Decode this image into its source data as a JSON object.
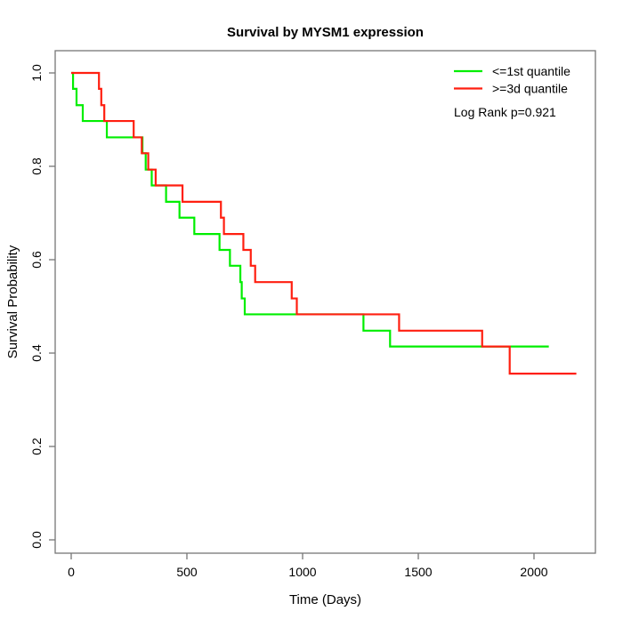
{
  "chart_data": {
    "type": "line",
    "subtype": "kaplan-meier-step",
    "title": "Survival by MYSM1 expression",
    "xlabel": "Time (Days)",
    "ylabel": "Survival Probability",
    "x_ticks": [
      0,
      500,
      1000,
      1500,
      2000
    ],
    "y_tick_labels": [
      "0.0",
      "0.2",
      "0.4",
      "0.6",
      "0.8",
      "1.0"
    ],
    "y_tick_values": [
      0.0,
      0.2,
      0.4,
      0.6,
      0.8,
      1.0
    ],
    "xlim": [
      0,
      2200
    ],
    "ylim": [
      0,
      1
    ],
    "grid": "off",
    "legend_position": "top-right",
    "annotation": "Log Rank p=0.921",
    "series": [
      {
        "name": "<=1st quantile",
        "color": "#00ee00",
        "start": [
          0,
          1.0
        ],
        "steps": [
          [
            8,
            0.966
          ],
          [
            23,
            0.931
          ],
          [
            50,
            0.897
          ],
          [
            154,
            0.862
          ],
          [
            308,
            0.828
          ],
          [
            322,
            0.793
          ],
          [
            348,
            0.759
          ],
          [
            410,
            0.724
          ],
          [
            468,
            0.69
          ],
          [
            532,
            0.655
          ],
          [
            641,
            0.621
          ],
          [
            686,
            0.587
          ],
          [
            731,
            0.552
          ],
          [
            737,
            0.517
          ],
          [
            750,
            0.483
          ],
          [
            1263,
            0.448
          ],
          [
            1378,
            0.414
          ]
        ],
        "end_time": 2064
      },
      {
        "name": ">=3d quantile",
        "color": "#ff1f10",
        "start": [
          0,
          1.0
        ],
        "steps": [
          [
            120,
            0.966
          ],
          [
            130,
            0.931
          ],
          [
            143,
            0.897
          ],
          [
            270,
            0.862
          ],
          [
            305,
            0.828
          ],
          [
            333,
            0.793
          ],
          [
            365,
            0.759
          ],
          [
            481,
            0.724
          ],
          [
            647,
            0.69
          ],
          [
            660,
            0.655
          ],
          [
            744,
            0.621
          ],
          [
            776,
            0.587
          ],
          [
            795,
            0.552
          ],
          [
            953,
            0.517
          ],
          [
            975,
            0.483
          ],
          [
            1417,
            0.448
          ],
          [
            1776,
            0.414
          ],
          [
            1895,
            0.356
          ]
        ],
        "end_time": 2183
      }
    ]
  }
}
